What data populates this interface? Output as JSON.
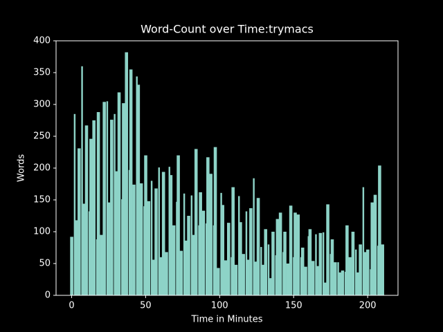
{
  "chart_data": {
    "type": "bar",
    "title": "Word-Count over Time:trymacs",
    "xlabel": "Time in Minutes",
    "ylabel": "Words",
    "color": "#8dd3c7",
    "x": [
      0,
      2,
      3,
      5,
      7,
      8,
      10,
      12,
      13,
      15,
      17,
      18,
      20,
      22,
      24,
      25,
      27,
      29,
      30,
      32,
      34,
      35,
      37,
      39,
      40,
      42,
      44,
      45,
      47,
      49,
      50,
      52,
      54,
      55,
      57,
      59,
      60,
      62,
      64,
      66,
      67,
      69,
      71,
      72,
      74,
      76,
      77,
      79,
      81,
      82,
      84,
      86,
      87,
      89,
      91,
      92,
      94,
      96,
      97,
      99,
      101,
      102,
      104,
      106,
      108,
      109,
      111,
      113,
      114,
      116,
      118,
      119,
      121,
      123,
      124,
      126,
      128,
      129,
      131,
      133,
      134,
      136,
      138,
      139,
      141,
      143,
      144,
      146,
      148,
      150,
      151,
      153,
      155,
      156,
      158,
      160,
      161,
      163,
      165,
      166,
      168,
      170,
      171,
      173,
      175,
      176,
      178,
      180,
      181,
      183,
      185,
      186,
      188,
      190,
      192,
      193,
      195,
      197,
      198,
      200,
      202,
      203,
      205,
      207,
      208,
      210
    ],
    "values": [
      92,
      285,
      118,
      231,
      360,
      144,
      267,
      132,
      246,
      275,
      88,
      288,
      95,
      304,
      305,
      146,
      276,
      285,
      195,
      319,
      151,
      302,
      382,
      197,
      355,
      174,
      344,
      331,
      176,
      140,
      220,
      148,
      180,
      56,
      168,
      201,
      60,
      194,
      68,
      202,
      189,
      110,
      147,
      220,
      70,
      160,
      86,
      125,
      157,
      95,
      230,
      110,
      162,
      133,
      113,
      217,
      191,
      110,
      233,
      43,
      161,
      142,
      55,
      114,
      60,
      170,
      48,
      156,
      115,
      65,
      132,
      56,
      137,
      184,
      53,
      153,
      76,
      48,
      104,
      80,
      27,
      100,
      63,
      120,
      130,
      68,
      100,
      50,
      141,
      60,
      130,
      127,
      60,
      75,
      45,
      93,
      104,
      54,
      96,
      46,
      98,
      99,
      20,
      143,
      65,
      88,
      52,
      52,
      36,
      39,
      37,
      110,
      60,
      100,
      72,
      36,
      80,
      170,
      68,
      72,
      41,
      146,
      158,
      78,
      204,
      80
    ],
    "xlim": [
      -10.5,
      220.5
    ],
    "ylim": [
      0,
      400
    ],
    "xticks": [
      0,
      50,
      100,
      150,
      200
    ],
    "yticks": [
      0,
      50,
      100,
      150,
      200,
      250,
      300,
      350,
      400
    ]
  }
}
